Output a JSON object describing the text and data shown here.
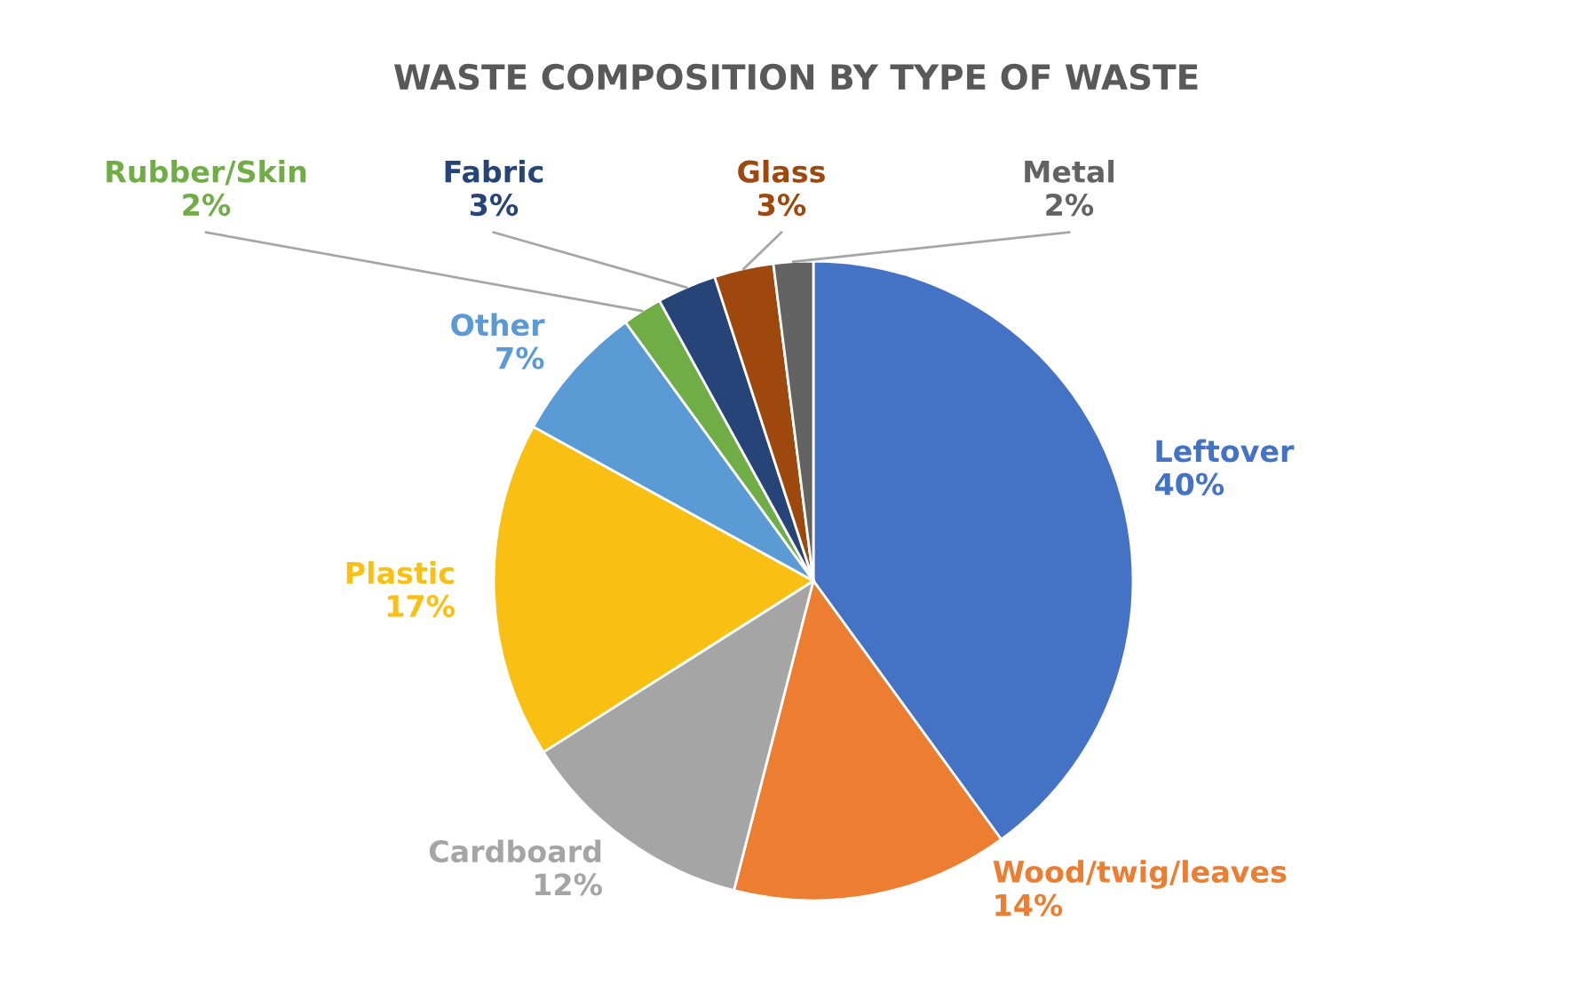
{
  "chart_data": {
    "type": "pie",
    "title": "WASTE COMPOSITION BY TYPE OF WASTE",
    "categories": [
      "Leftover",
      "Wood/twig/leaves",
      "Cardboard",
      "Plastic",
      "Other",
      "Rubber/Skin",
      "Fabric",
      "Glass",
      "Metal"
    ],
    "values": [
      40,
      14,
      12,
      17,
      7,
      2,
      3,
      3,
      2
    ],
    "colors": [
      "#4472c4",
      "#ed7d31",
      "#a5a5a5",
      "#f9c013",
      "#5b9bd5",
      "#70ad47",
      "#264478",
      "#9e480e",
      "#636363"
    ],
    "value_labels": [
      "40%",
      "14%",
      "12%",
      "17%",
      "7%",
      "2%",
      "3%",
      "3%",
      "2%"
    ],
    "legend": false
  }
}
